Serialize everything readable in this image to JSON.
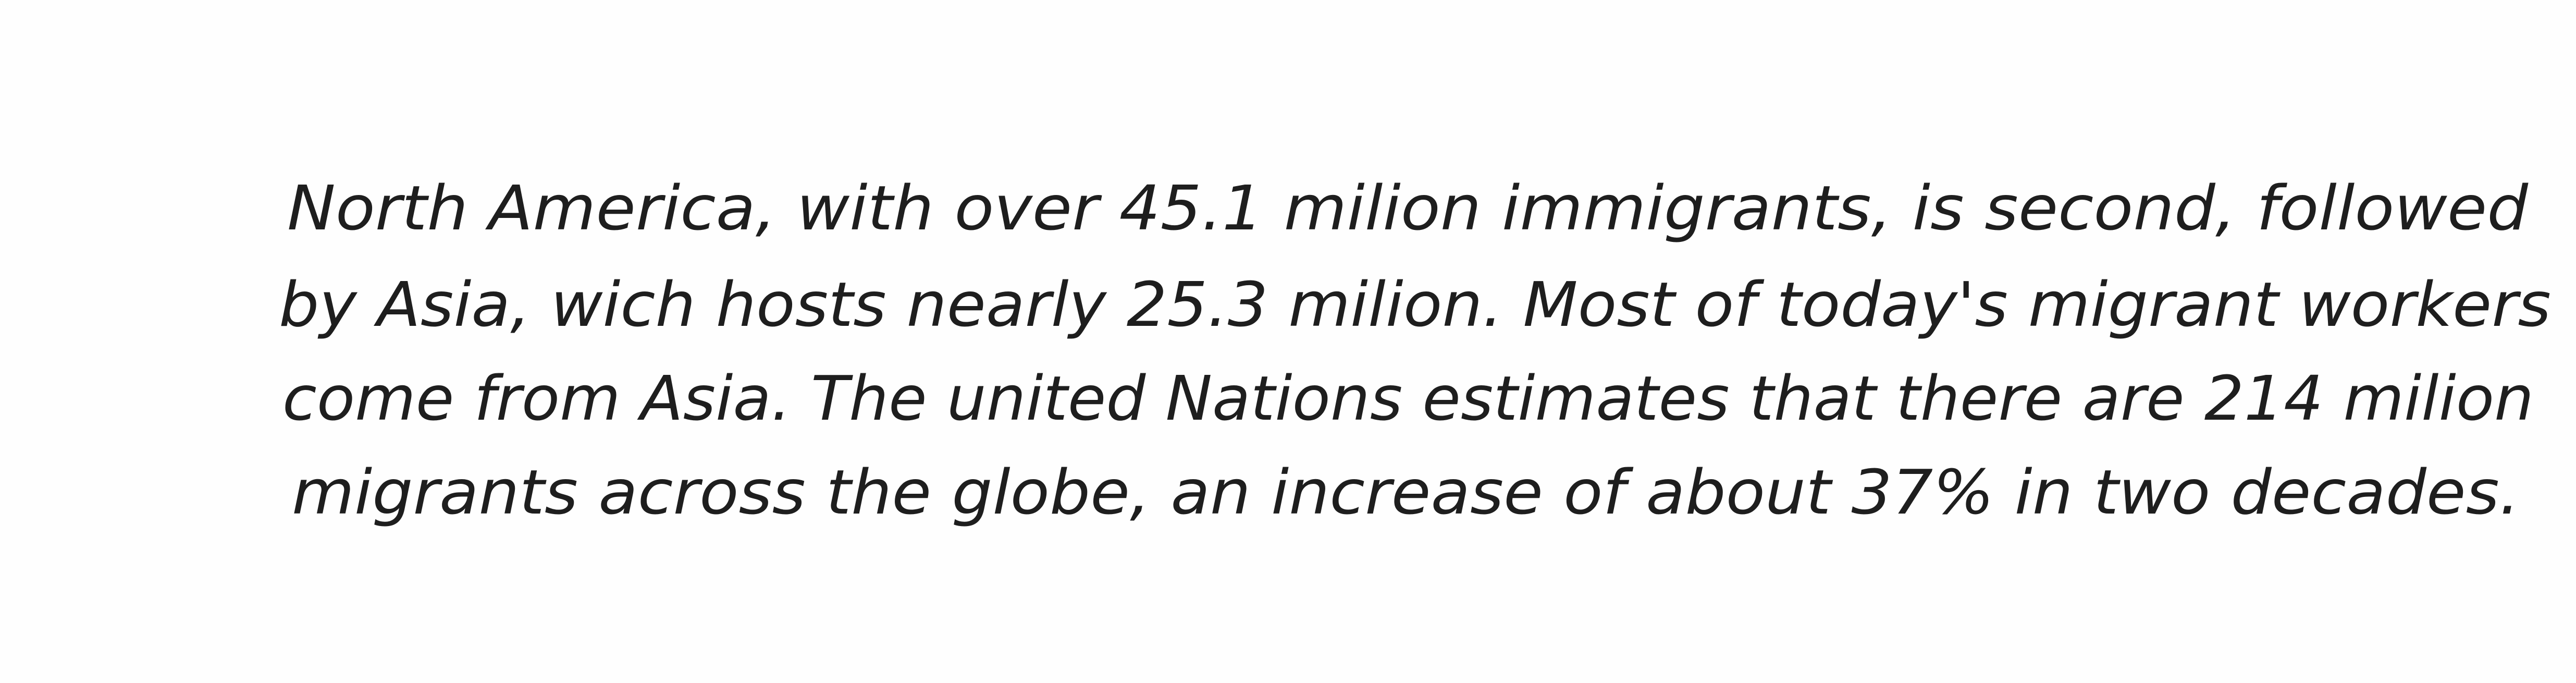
{
  "document": {
    "lines": [
      "North America, with over 45.1 milion immigrants, is second, followed",
      "by Asia, wich hosts nearly 25.3 milion. Most of today's migrant workers",
      "come from Asia. The united Nations estimates that there are 214 milion",
      "migrants across the globe, an increase of about 37% in two decades."
    ]
  }
}
